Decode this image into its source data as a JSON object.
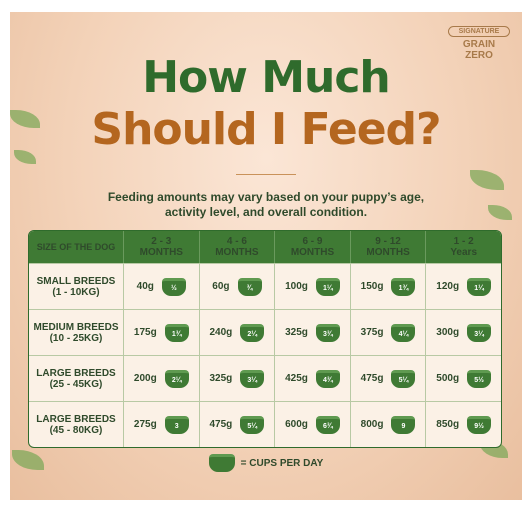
{
  "header": {
    "logo_top": "SIGNATURE",
    "logo_brand": "GRAIN ZERO",
    "title_line1": "How Much",
    "title_line2": "Should I Feed?",
    "subtitle": [
      "Feeding amounts may vary based on your puppy’s age,",
      "activity level, and overall condition."
    ]
  },
  "table": {
    "columns": [
      [
        "SIZE OF THE DOG"
      ],
      [
        "2 - 3",
        "MONTHS"
      ],
      [
        "4 - 6",
        "MONTHS"
      ],
      [
        "6 - 9",
        "MONTHS"
      ],
      [
        "9 - 12",
        "MONTHS"
      ],
      [
        "1 - 2",
        "Years"
      ]
    ],
    "rows": [
      {
        "label": [
          "SMALL BREEDS",
          "(1 - 10KG)"
        ],
        "cells": [
          {
            "grams": "40g",
            "cups": "½"
          },
          {
            "grams": "60g",
            "cups": "¾"
          },
          {
            "grams": "100g",
            "cups": "1¼"
          },
          {
            "grams": "150g",
            "cups": "1¾"
          },
          {
            "grams": "120g",
            "cups": "1¼"
          }
        ]
      },
      {
        "label": [
          "MEDIUM BREEDS",
          "(10 - 25KG)"
        ],
        "cells": [
          {
            "grams": "175g",
            "cups": "1¾"
          },
          {
            "grams": "240g",
            "cups": "2¼"
          },
          {
            "grams": "325g",
            "cups": "3¾"
          },
          {
            "grams": "375g",
            "cups": "4¼"
          },
          {
            "grams": "300g",
            "cups": "3¼"
          }
        ]
      },
      {
        "label": [
          "LARGE BREEDS",
          "(25 - 45KG)"
        ],
        "cells": [
          {
            "grams": "200g",
            "cups": "2¼"
          },
          {
            "grams": "325g",
            "cups": "3¼"
          },
          {
            "grams": "425g",
            "cups": "4¾"
          },
          {
            "grams": "475g",
            "cups": "5¼"
          },
          {
            "grams": "500g",
            "cups": "5½"
          }
        ]
      },
      {
        "label": [
          "LARGE BREEDS",
          "(45 - 80KG)"
        ],
        "cells": [
          {
            "grams": "275g",
            "cups": "3"
          },
          {
            "grams": "475g",
            "cups": "5¼"
          },
          {
            "grams": "600g",
            "cups": "6¾"
          },
          {
            "grams": "800g",
            "cups": "9"
          },
          {
            "grams": "850g",
            "cups": "9½"
          }
        ]
      }
    ]
  },
  "legend": "= CUPS PER DAY"
}
